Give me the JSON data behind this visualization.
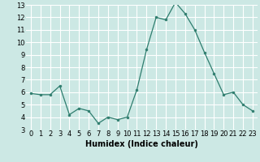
{
  "x": [
    0,
    1,
    2,
    3,
    4,
    5,
    6,
    7,
    8,
    9,
    10,
    11,
    12,
    13,
    14,
    15,
    16,
    17,
    18,
    19,
    20,
    21,
    22,
    23
  ],
  "y": [
    5.9,
    5.8,
    5.8,
    6.5,
    4.2,
    4.7,
    4.5,
    3.5,
    4.0,
    3.8,
    4.0,
    6.2,
    9.4,
    12.0,
    11.8,
    13.2,
    12.3,
    11.0,
    9.2,
    7.5,
    5.8,
    6.0,
    5.0,
    4.5
  ],
  "xlabel": "Humidex (Indice chaleur)",
  "ylim": [
    3,
    13
  ],
  "xlim": [
    -0.5,
    23.5
  ],
  "yticks": [
    3,
    4,
    5,
    6,
    7,
    8,
    9,
    10,
    11,
    12,
    13
  ],
  "xticks": [
    0,
    1,
    2,
    3,
    4,
    5,
    6,
    7,
    8,
    9,
    10,
    11,
    12,
    13,
    14,
    15,
    16,
    17,
    18,
    19,
    20,
    21,
    22,
    23
  ],
  "line_color": "#2e7d6e",
  "marker_color": "#2e7d6e",
  "bg_color": "#cce8e4",
  "grid_color": "#ffffff",
  "xlabel_fontsize": 7,
  "tick_fontsize": 6
}
